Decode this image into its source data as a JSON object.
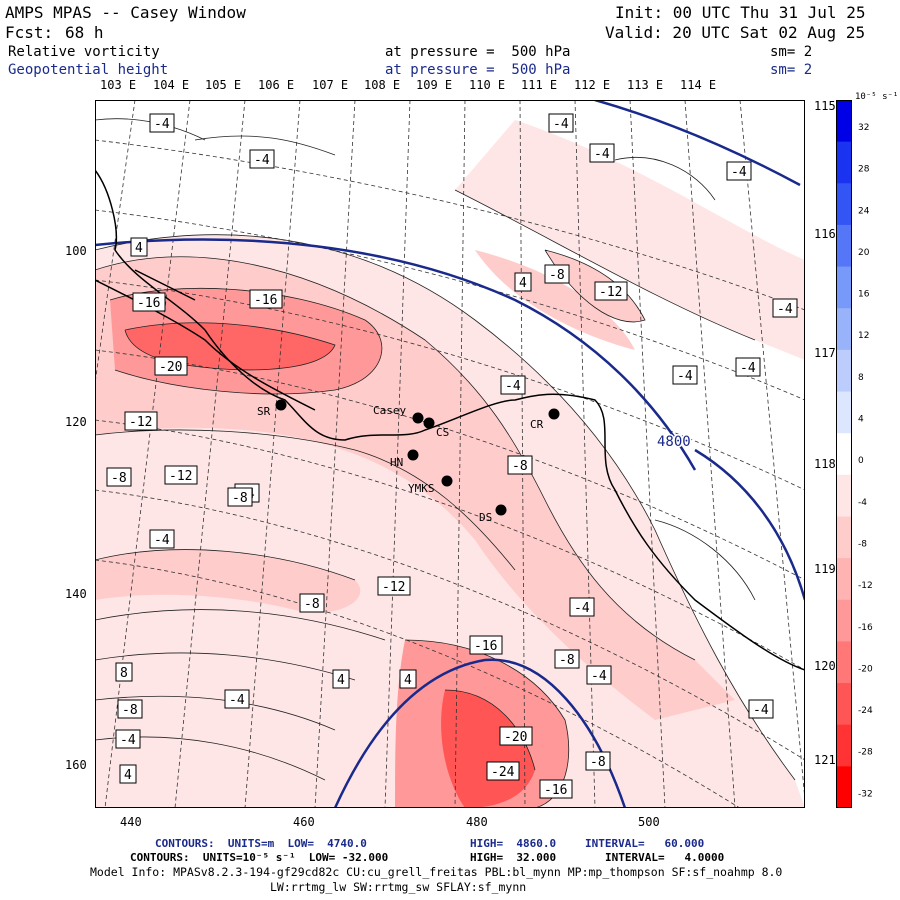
{
  "header": {
    "title": "AMPS MPAS -- Casey Window",
    "fcst_label": "Fcst:",
    "fcst_value": "68 h",
    "init": "Init: 00 UTC Thu 31 Jul 25",
    "valid": "Valid: 20 UTC Sat 02 Aug 25",
    "field1_name": "Relative vorticity",
    "field1_level": "at pressure =  500 hPa",
    "field1_sm": "sm= 2",
    "field2_name": "Geopotential height",
    "field2_level": "at pressure =  500 hPa",
    "field2_sm": "sm= 2"
  },
  "map": {
    "lon_labels_top": [
      "103 E",
      "104 E",
      "105 E",
      "106 E",
      "107 E",
      "108 E",
      "109 E",
      "110 E",
      "111 E",
      "112 E",
      "113 E",
      "114 E"
    ],
    "lon_labels_right": [
      "115 E",
      "116 E",
      "117 E",
      "118 E",
      "119 E",
      "120 E",
      "121 E"
    ],
    "x_ticks": [
      "440",
      "460",
      "480",
      "500"
    ],
    "y_ticks": [
      "100",
      "120",
      "140",
      "160"
    ],
    "height_contour_label": "4800",
    "stations": [
      {
        "id": "SR",
        "name": "SR"
      },
      {
        "id": "Casey",
        "name": "Casey"
      },
      {
        "id": "CS",
        "name": "CS"
      },
      {
        "id": "HN",
        "name": "HN"
      },
      {
        "id": "YMKS",
        "name": "YMKS"
      },
      {
        "id": "DS",
        "name": "DS"
      },
      {
        "id": "CR",
        "name": "CR"
      }
    ],
    "contour_labels": [
      "-4",
      "-4",
      "4",
      "-4",
      "-4",
      "-4",
      "4",
      "-8",
      "-12",
      "-4",
      "-16",
      "-16",
      "-20",
      "-4",
      "-4",
      "-4",
      "-12",
      "-12",
      "-8",
      "-8",
      "-4",
      "-8",
      "-4",
      "-12",
      "-8",
      "-4",
      "-8",
      "-16",
      "-4",
      "-4",
      "8",
      "4",
      "4",
      "-4",
      "-8",
      "-4",
      "-20",
      "-24",
      "-8",
      "-16",
      "4"
    ]
  },
  "colorbar": {
    "unit_label": "10⁻⁵ s⁻¹",
    "ticks": [
      "32",
      "28",
      "24",
      "20",
      "16",
      "12",
      "8",
      "4",
      "0",
      "-4",
      "-8",
      "-12",
      "-16",
      "-20",
      "-24",
      "-28",
      "-32"
    ],
    "colors": [
      "#0000e6",
      "#1a33f0",
      "#3355f5",
      "#5577f7",
      "#7799f9",
      "#99b3fb",
      "#bbccfd",
      "#dde6ff",
      "#ffffff",
      "#ffe6e6",
      "#ffcccc",
      "#ffb3b3",
      "#ff9999",
      "#ff7777",
      "#ff5555",
      "#ff3333",
      "#ff0000"
    ]
  },
  "footer": {
    "line1_contours": "CONTOURS:  UNITS=m  LOW=  4740.0",
    "line1_high": "HIGH=  4860.0",
    "line1_interval": "INTERVAL=   60.000",
    "line2_contours": "CONTOURS:  UNITS=10⁻⁵ s⁻¹  LOW= -32.000",
    "line2_high": "HIGH=  32.000",
    "line2_interval": "INTERVAL=   4.0000",
    "model_info": "Model Info: MPASv8.2.3-194-gf29cd82c CU:cu_grell_freitas PBL:bl_mynn MP:mp_thompson SF:sf_noahmp 8.0",
    "model_info2": "LW:rrtmg_lw SW:rrtmg_sw SFLAY:sf_mynn"
  }
}
